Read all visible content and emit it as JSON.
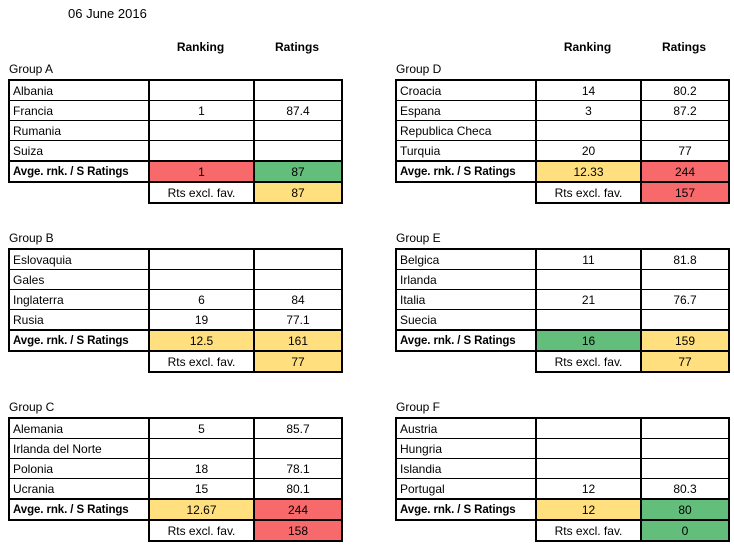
{
  "date": "06 June 2016",
  "column_headers": {
    "ranking": "Ranking",
    "ratings": "Ratings"
  },
  "labels": {
    "summary": "Avge. rnk. / S Ratings",
    "rts_excl": "Rts excl. fav."
  },
  "colors": {
    "red": "#F8696B",
    "yellow": "#FFDF7E",
    "green": "#63BE7B",
    "border": "#000000",
    "background": "#FFFFFF"
  },
  "groups": [
    {
      "name": "Group A",
      "teams": [
        {
          "name": "Albania",
          "ranking": "",
          "rating": ""
        },
        {
          "name": "Francia",
          "ranking": "1",
          "rating": "87.4"
        },
        {
          "name": "Rumania",
          "ranking": "",
          "rating": ""
        },
        {
          "name": "Suiza",
          "ranking": "",
          "rating": ""
        }
      ],
      "summary": {
        "rank": {
          "value": "1",
          "color": "red"
        },
        "ratings": {
          "value": "87",
          "color": "green"
        }
      },
      "rts_excl": {
        "value": "87",
        "color": "yellow"
      }
    },
    {
      "name": "Group B",
      "teams": [
        {
          "name": "Eslovaquia",
          "ranking": "",
          "rating": ""
        },
        {
          "name": "Gales",
          "ranking": "",
          "rating": ""
        },
        {
          "name": "Inglaterra",
          "ranking": "6",
          "rating": "84"
        },
        {
          "name": "Rusia",
          "ranking": "19",
          "rating": "77.1"
        }
      ],
      "summary": {
        "rank": {
          "value": "12.5",
          "color": "yellow"
        },
        "ratings": {
          "value": "161",
          "color": "yellow"
        }
      },
      "rts_excl": {
        "value": "77",
        "color": "yellow"
      }
    },
    {
      "name": "Group C",
      "teams": [
        {
          "name": "Alemania",
          "ranking": "5",
          "rating": "85.7"
        },
        {
          "name": "Irlanda del Norte",
          "ranking": "",
          "rating": ""
        },
        {
          "name": "Polonia",
          "ranking": "18",
          "rating": "78.1"
        },
        {
          "name": "Ucrania",
          "ranking": "15",
          "rating": "80.1"
        }
      ],
      "summary": {
        "rank": {
          "value": "12.67",
          "color": "yellow"
        },
        "ratings": {
          "value": "244",
          "color": "red"
        }
      },
      "rts_excl": {
        "value": "158",
        "color": "red"
      }
    },
    {
      "name": "Group D",
      "teams": [
        {
          "name": "Croacia",
          "ranking": "14",
          "rating": "80.2"
        },
        {
          "name": "Espana",
          "ranking": "3",
          "rating": "87.2"
        },
        {
          "name": "Republica Checa",
          "ranking": "",
          "rating": ""
        },
        {
          "name": "Turquia",
          "ranking": "20",
          "rating": "77"
        }
      ],
      "summary": {
        "rank": {
          "value": "12.33",
          "color": "yellow"
        },
        "ratings": {
          "value": "244",
          "color": "red"
        }
      },
      "rts_excl": {
        "value": "157",
        "color": "red"
      }
    },
    {
      "name": "Group E",
      "teams": [
        {
          "name": "Belgica",
          "ranking": "11",
          "rating": "81.8"
        },
        {
          "name": "Irlanda",
          "ranking": "",
          "rating": ""
        },
        {
          "name": "Italia",
          "ranking": "21",
          "rating": "76.7"
        },
        {
          "name": "Suecia",
          "ranking": "",
          "rating": ""
        }
      ],
      "summary": {
        "rank": {
          "value": "16",
          "color": "green"
        },
        "ratings": {
          "value": "159",
          "color": "yellow"
        }
      },
      "rts_excl": {
        "value": "77",
        "color": "yellow"
      }
    },
    {
      "name": "Group F",
      "teams": [
        {
          "name": "Austria",
          "ranking": "",
          "rating": ""
        },
        {
          "name": "Hungria",
          "ranking": "",
          "rating": ""
        },
        {
          "name": "Islandia",
          "ranking": "",
          "rating": ""
        },
        {
          "name": "Portugal",
          "ranking": "12",
          "rating": "80.3"
        }
      ],
      "summary": {
        "rank": {
          "value": "12",
          "color": "yellow"
        },
        "ratings": {
          "value": "80",
          "color": "green"
        }
      },
      "rts_excl": {
        "value": "0",
        "color": "green"
      }
    }
  ]
}
